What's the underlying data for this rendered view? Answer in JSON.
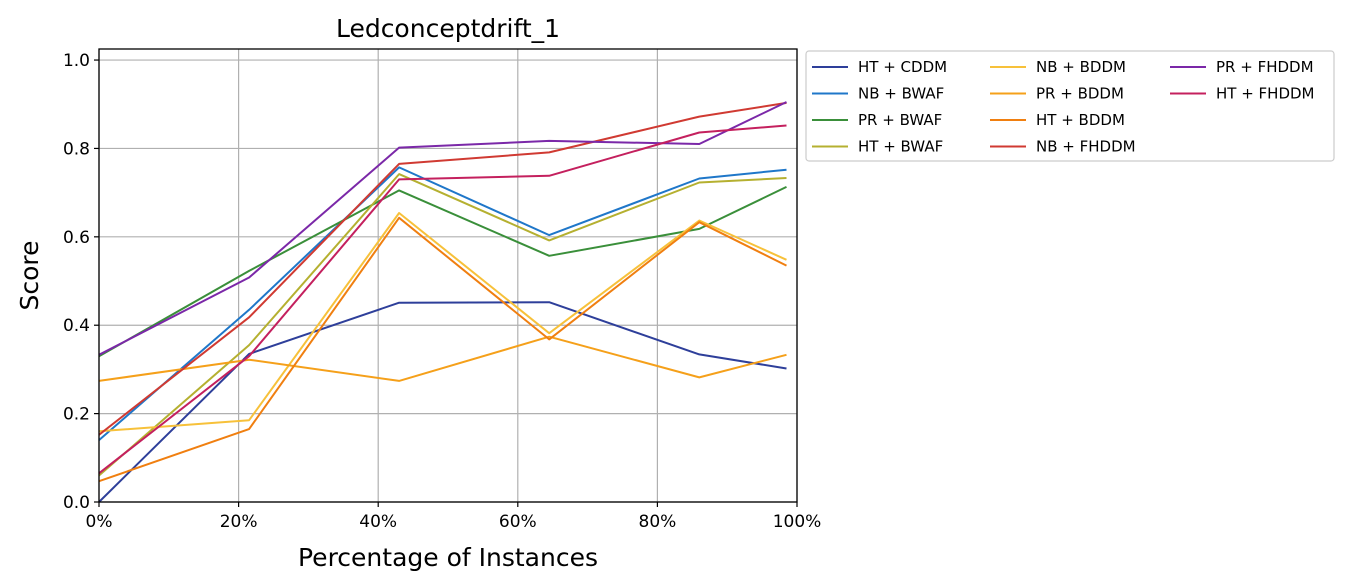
{
  "chart_data": {
    "type": "line",
    "title": "Ledconceptdrift_1",
    "xlabel": "Percentage of Instances",
    "ylabel": "Score",
    "x": [
      0,
      21.5,
      43,
      64.5,
      86,
      98.5
    ],
    "xlim": [
      0,
      100
    ],
    "ylim": [
      0,
      1.025
    ],
    "xticks": [
      0,
      20,
      40,
      60,
      80,
      100
    ],
    "xtick_labels": [
      "0%",
      "20%",
      "40%",
      "60%",
      "80%",
      "100%"
    ],
    "yticks": [
      0.0,
      0.2,
      0.4,
      0.6,
      0.8,
      1.0
    ],
    "ytick_labels": [
      "0.0",
      "0.2",
      "0.4",
      "0.6",
      "0.8",
      "1.0"
    ],
    "grid": true,
    "legend": "outside-top-right",
    "series": [
      {
        "name": "HT + CDDM",
        "color": "#2e3f9a",
        "values": [
          0.0,
          0.335,
          0.451,
          0.452,
          0.334,
          0.302
        ]
      },
      {
        "name": "NB + BWAF",
        "color": "#1f77c9",
        "values": [
          0.14,
          0.435,
          0.757,
          0.604,
          0.732,
          0.752
        ]
      },
      {
        "name": "PR + BWAF",
        "color": "#3a8f3a",
        "values": [
          0.33,
          0.523,
          0.705,
          0.557,
          0.618,
          0.713
        ]
      },
      {
        "name": "HT + BWAF",
        "color": "#b5b030",
        "values": [
          0.06,
          0.355,
          0.742,
          0.592,
          0.723,
          0.733
        ]
      },
      {
        "name": "NB + BDDM",
        "color": "#f7c13a",
        "values": [
          0.16,
          0.185,
          0.654,
          0.382,
          0.637,
          0.548
        ]
      },
      {
        "name": "PR + BDDM",
        "color": "#f5a01a",
        "values": [
          0.274,
          0.322,
          0.274,
          0.374,
          0.282,
          0.333
        ]
      },
      {
        "name": "HT + BDDM",
        "color": "#f07f10",
        "values": [
          0.047,
          0.165,
          0.643,
          0.368,
          0.633,
          0.535
        ]
      },
      {
        "name": "NB + FHDDM",
        "color": "#d03a32",
        "values": [
          0.152,
          0.418,
          0.765,
          0.791,
          0.872,
          0.903
        ]
      },
      {
        "name": "PR + FHDDM",
        "color": "#7b28a8",
        "values": [
          0.333,
          0.508,
          0.802,
          0.817,
          0.81,
          0.905
        ]
      },
      {
        "name": "HT + FHDDM",
        "color": "#c4205e",
        "values": [
          0.065,
          0.33,
          0.73,
          0.738,
          0.836,
          0.852
        ]
      }
    ]
  }
}
